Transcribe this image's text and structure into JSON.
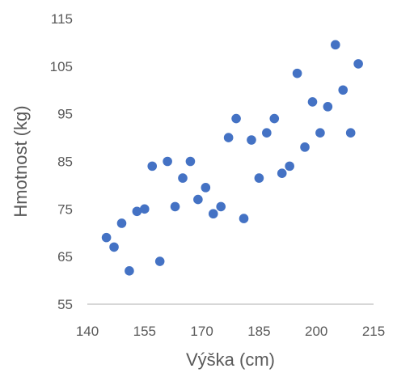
{
  "chart_data": {
    "type": "scatter",
    "title": "",
    "xlabel": "Výška (cm)",
    "ylabel": "Hmotnost (kg)",
    "xlim": [
      140,
      215
    ],
    "ylim": [
      55,
      115
    ],
    "xticks": [
      "140",
      "155",
      "170",
      "185",
      "200",
      "215"
    ],
    "yticks": [
      "55",
      "65",
      "75",
      "85",
      "95",
      "105",
      "115"
    ],
    "grid": false,
    "legend": "none",
    "marker_color": "#4472c4",
    "series": [
      {
        "points": [
          [
            145,
            69
          ],
          [
            147,
            67
          ],
          [
            149,
            72
          ],
          [
            151,
            62
          ],
          [
            153,
            74.5
          ],
          [
            155,
            75
          ],
          [
            157,
            84
          ],
          [
            159,
            64
          ],
          [
            161,
            85
          ],
          [
            163,
            75.5
          ],
          [
            165,
            81.5
          ],
          [
            167,
            85
          ],
          [
            169,
            77
          ],
          [
            171,
            79.5
          ],
          [
            173,
            74
          ],
          [
            175,
            75.5
          ],
          [
            177,
            90
          ],
          [
            179,
            94
          ],
          [
            181,
            73
          ],
          [
            183,
            89.5
          ],
          [
            185,
            81.5
          ],
          [
            187,
            91
          ],
          [
            189,
            94
          ],
          [
            191,
            82.5
          ],
          [
            193,
            84
          ],
          [
            195,
            103.5
          ],
          [
            197,
            88
          ],
          [
            199,
            97.5
          ],
          [
            201,
            91
          ],
          [
            203,
            96.5
          ],
          [
            205,
            109.5
          ],
          [
            207,
            100
          ],
          [
            209,
            91
          ],
          [
            211,
            105.5
          ]
        ]
      }
    ]
  }
}
